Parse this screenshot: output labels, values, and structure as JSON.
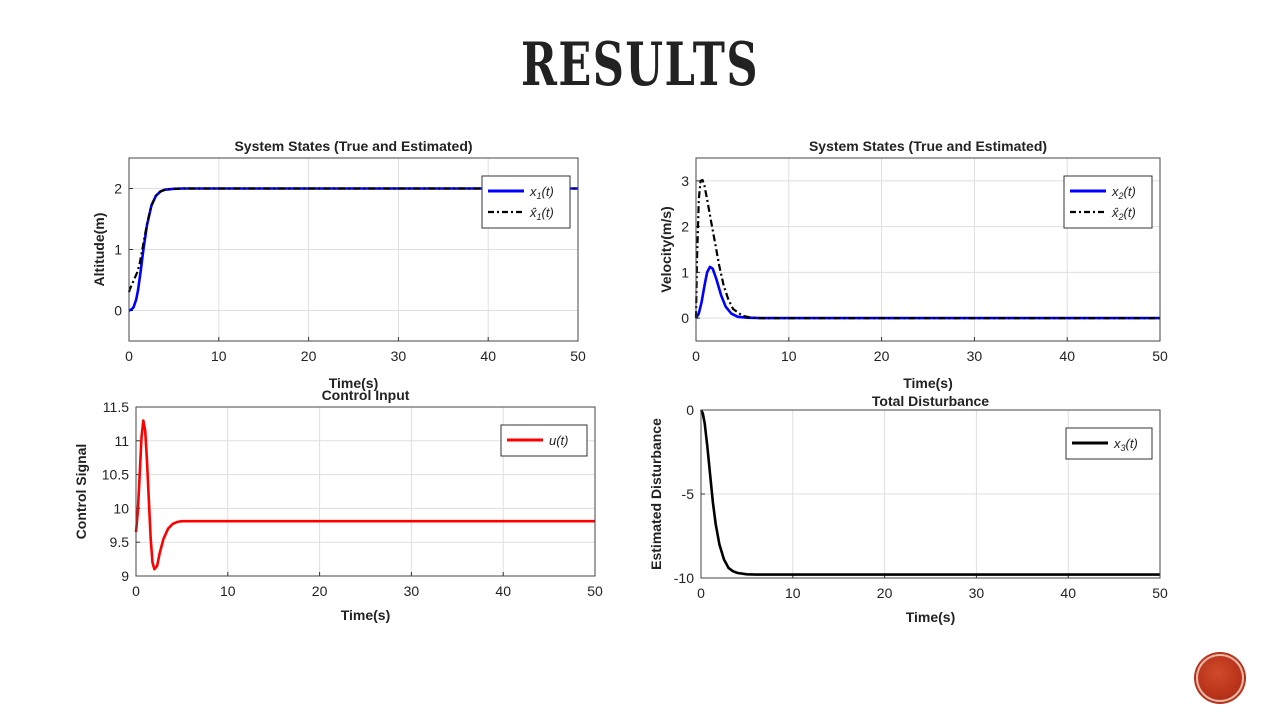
{
  "slide": {
    "title": "RESULTS"
  },
  "chart_data": [
    {
      "id": "chart1",
      "type": "line",
      "title": "System States (True and Estimated)",
      "xlabel": "Time(s)",
      "ylabel": "Altitude(m)",
      "xlim": [
        0,
        50
      ],
      "ylim": [
        -0.5,
        2.5
      ],
      "xticks": [
        "0",
        "10",
        "20",
        "30",
        "40",
        "50"
      ],
      "yticks": [
        "0",
        "1",
        "2"
      ],
      "grid": true,
      "legend": {
        "placement": "top-right",
        "entries": [
          "x1(t)",
          "x̂1(t)"
        ]
      },
      "series": [
        {
          "name": "x1(t)",
          "color": "#0000ff",
          "dash": "solid",
          "x": [
            0,
            0.2,
            0.5,
            0.8,
            1.0,
            1.3,
            1.6,
            2.0,
            2.5,
            3.0,
            3.5,
            4.0,
            5.0,
            6.0,
            8.0,
            50.0
          ],
          "y": [
            0,
            0.01,
            0.05,
            0.18,
            0.33,
            0.65,
            1.0,
            1.4,
            1.72,
            1.88,
            1.95,
            1.98,
            1.995,
            2.0,
            2.0,
            2.0
          ]
        },
        {
          "name": "x̂1(t)",
          "color": "#000000",
          "dash": "dashdot",
          "x": [
            0,
            0.1,
            0.3,
            0.6,
            0.9,
            1.2,
            1.5,
            2.0,
            2.5,
            3.0,
            3.5,
            4.0,
            5.0,
            6.0,
            8.0,
            50.0
          ],
          "y": [
            0.3,
            0.35,
            0.42,
            0.52,
            0.62,
            0.78,
            1.02,
            1.42,
            1.72,
            1.88,
            1.95,
            1.98,
            1.995,
            2.0,
            2.0,
            2.0
          ]
        }
      ]
    },
    {
      "id": "chart2",
      "type": "line",
      "title": "System States (True and Estimated)",
      "xlabel": "Time(s)",
      "ylabel": "Velocity(m/s)",
      "xlim": [
        0,
        50
      ],
      "ylim": [
        -0.5,
        3.5
      ],
      "xticks": [
        "0",
        "10",
        "20",
        "30",
        "40",
        "50"
      ],
      "yticks": [
        "0",
        "1",
        "2",
        "3"
      ],
      "grid": true,
      "legend": {
        "placement": "top-right",
        "entries": [
          "x2(t)",
          "x̂2(t)"
        ]
      },
      "series": [
        {
          "name": "x2(t)",
          "color": "#0000ff",
          "dash": "solid",
          "x": [
            0,
            0.3,
            0.6,
            0.9,
            1.2,
            1.5,
            1.8,
            2.2,
            2.7,
            3.2,
            3.8,
            4.5,
            5.5,
            7.0,
            50.0
          ],
          "y": [
            0,
            0.1,
            0.35,
            0.7,
            1.0,
            1.12,
            1.08,
            0.85,
            0.5,
            0.25,
            0.1,
            0.03,
            0.01,
            0,
            0
          ]
        },
        {
          "name": "x̂2(t)",
          "color": "#000000",
          "dash": "dashdot",
          "x": [
            0,
            0.1,
            0.3,
            0.5,
            0.7,
            0.9,
            1.2,
            1.6,
            2.0,
            2.5,
            3.0,
            3.5,
            4.0,
            5.0,
            6.0,
            7.0,
            50.0
          ],
          "y": [
            0,
            1.2,
            2.6,
            3.0,
            3.02,
            2.9,
            2.6,
            2.15,
            1.7,
            1.15,
            0.7,
            0.4,
            0.2,
            0.05,
            0.01,
            0,
            0
          ]
        }
      ]
    },
    {
      "id": "chart3",
      "type": "line",
      "title": "Control Input",
      "xlabel": "Time(s)",
      "ylabel": "Control Signal",
      "xlim": [
        0,
        50
      ],
      "ylim": [
        9,
        11.5
      ],
      "xticks": [
        "0",
        "10",
        "20",
        "30",
        "40",
        "50"
      ],
      "yticks": [
        "9",
        "9.5",
        "10",
        "10.5",
        "11",
        "11.5"
      ],
      "grid": true,
      "legend": {
        "placement": "top-right",
        "entries": [
          "u(t)"
        ]
      },
      "series": [
        {
          "name": "u(t)",
          "color": "#ff0000",
          "dash": "solid",
          "x": [
            0,
            0.2,
            0.4,
            0.6,
            0.8,
            1.0,
            1.2,
            1.4,
            1.6,
            1.8,
            2.0,
            2.3,
            2.6,
            3.0,
            3.5,
            4.0,
            4.5,
            5.0,
            6.0,
            8.0,
            50.0
          ],
          "y": [
            9.65,
            9.95,
            10.5,
            11.05,
            11.3,
            11.15,
            10.7,
            10.1,
            9.55,
            9.2,
            9.1,
            9.15,
            9.35,
            9.55,
            9.7,
            9.77,
            9.8,
            9.81,
            9.81,
            9.81,
            9.81
          ]
        }
      ]
    },
    {
      "id": "chart4",
      "type": "line",
      "title": "Total Disturbance",
      "xlabel": "Time(s)",
      "ylabel": "Estimated Disturbance",
      "xlim": [
        0,
        50
      ],
      "ylim": [
        -10,
        0
      ],
      "xticks": [
        "0",
        "10",
        "20",
        "30",
        "40",
        "50"
      ],
      "yticks": [
        "0",
        "-5",
        "-10"
      ],
      "grid": true,
      "legend": {
        "placement": "top-right",
        "entries": [
          "x3(t)"
        ]
      },
      "series": [
        {
          "name": "x3(t)",
          "color": "#000000",
          "dash": "solid",
          "x": [
            0,
            0.2,
            0.4,
            0.7,
            1.0,
            1.3,
            1.6,
            2.0,
            2.5,
            3.0,
            3.5,
            4.0,
            5.0,
            6.0,
            8.0,
            50.0
          ],
          "y": [
            0,
            -0.2,
            -0.8,
            -2.2,
            -3.9,
            -5.5,
            -6.8,
            -8.0,
            -8.9,
            -9.4,
            -9.6,
            -9.7,
            -9.78,
            -9.8,
            -9.8,
            -9.8
          ]
        }
      ]
    }
  ]
}
